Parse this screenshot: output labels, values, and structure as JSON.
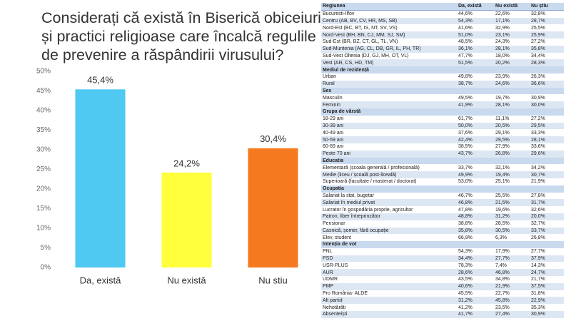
{
  "chart_data": {
    "type": "bar",
    "title": "Considerați că există în Biserică obiceiuri și practici religioase care încalcă regulile de prevenire a răspândirii virusului?",
    "categories": [
      "Da, există",
      "Nu există",
      "Nu stiu"
    ],
    "values": [
      45.4,
      24.2,
      30.4
    ],
    "value_labels": [
      "45,4%",
      "24,2%",
      "30,4%"
    ],
    "colors": [
      "#4fc8f2",
      "#ffff3c",
      "#f57a1f"
    ],
    "ylim": [
      0,
      50
    ],
    "yticks": [
      {
        "value": 0,
        "label": "0%"
      },
      {
        "value": 5,
        "label": "5%"
      },
      {
        "value": 10,
        "label": "10%"
      },
      {
        "value": 15,
        "label": "15%"
      },
      {
        "value": 20,
        "label": "20%"
      },
      {
        "value": 25,
        "label": "25%"
      },
      {
        "value": 30,
        "label": "30%"
      },
      {
        "value": 35,
        "label": "35%"
      },
      {
        "value": 40,
        "label": "40%"
      },
      {
        "value": 45,
        "label": "45%"
      },
      {
        "value": 50,
        "label": "50%"
      }
    ],
    "grid": false
  },
  "table": {
    "header": [
      "Regiunea",
      "Da, există",
      "Nu există",
      "Nu știu"
    ],
    "rows": [
      [
        "Bucuresti-Ilfov",
        "44,6%",
        "22,6%",
        "32,8%"
      ],
      [
        "Centru (AB, BV, CV, HR, MS, SB)",
        "54,3%",
        "17,1%",
        "28,7%"
      ],
      [
        "Nord-Est (BC, BT, IS, NT, SV, VS)",
        "41,6%",
        "32,9%",
        "25,5%"
      ],
      [
        "Nord-Vest (BH, BN, CJ, MM, SJ, SM)",
        "51,0%",
        "23,1%",
        "25,9%"
      ],
      [
        "Sud-Est (BR, BZ, CT, GL, TL, VN)",
        "48,5%",
        "24,3%",
        "27,2%"
      ],
      [
        "Sud-Muntenia (AG, CL, DB, GR, IL, PH, TR)",
        "36,1%",
        "28,1%",
        "35,8%"
      ],
      [
        "Sud-Vest Oltenia (DJ, GJ, MH, OT, VL)",
        "47,7%",
        "18,0%",
        "34,4%"
      ],
      [
        "Vest (AR, CS, HD, TM)",
        "51,5%",
        "20,2%",
        "28,3%"
      ],
      [
        "Mediul de rezidență"
      ],
      [
        "Urban",
        "49,8%",
        "23,9%",
        "26,3%"
      ],
      [
        "Rural",
        "38,7%",
        "24,6%",
        "36,6%"
      ],
      [
        "Sex"
      ],
      [
        "Masculin",
        "49,5%",
        "19,7%",
        "30,9%"
      ],
      [
        "Feminin",
        "41,9%",
        "28,1%",
        "30,0%"
      ],
      [
        "Grupa de vârstă"
      ],
      [
        "18-29 ani",
        "61,7%",
        "11,1%",
        "27,2%"
      ],
      [
        "30-39 ani",
        "50,0%",
        "20,5%",
        "29,5%"
      ],
      [
        "40-49 ani",
        "37,6%",
        "29,1%",
        "33,3%"
      ],
      [
        "50-59 ani",
        "42,4%",
        "29,5%",
        "28,1%"
      ],
      [
        "60-69 ani",
        "38,5%",
        "27,9%",
        "33,6%"
      ],
      [
        "Peste 70 ani",
        "43,7%",
        "26,8%",
        "29,6%"
      ],
      [
        "Educatia"
      ],
      [
        "Elementară (școala generală / profesională)",
        "33,7%",
        "32,1%",
        "34,2%"
      ],
      [
        "Medie (liceu / școală post-liceală)",
        "49,9%",
        "19,4%",
        "30,7%"
      ],
      [
        "Superioară (facultate / masterat / doctorat)",
        "53,0%",
        "25,1%",
        "21,9%"
      ],
      [
        "Ocupatia"
      ],
      [
        "Salariat la stat, bugetar",
        "46,7%",
        "25,5%",
        "27,8%"
      ],
      [
        "Salariat în mediul privat",
        "46,8%",
        "21,5%",
        "31,7%"
      ],
      [
        "Lucrator în gospodăria proprie, agricultor",
        "47,8%",
        "19,6%",
        "32,6%"
      ],
      [
        "Patron, liber întreprinzător",
        "48,8%",
        "31,2%",
        "20,0%"
      ],
      [
        "Pensionar",
        "38,8%",
        "28,5%",
        "32,7%"
      ],
      [
        "Casnică, șomer, fără ocupație",
        "35,8%",
        "30,5%",
        "33,7%"
      ],
      [
        "Elev, student",
        "66,9%",
        "6,3%",
        "26,8%"
      ],
      [
        "Intenția de vot"
      ],
      [
        "PNL",
        "54,3%",
        "17,9%",
        "27,7%"
      ],
      [
        "PSD",
        "34,4%",
        "27,7%",
        "37,9%"
      ],
      [
        "USR-PLUS",
        "78,3%",
        "7,4%",
        "14,3%"
      ],
      [
        "AUR",
        "28,6%",
        "46,8%",
        "24,7%"
      ],
      [
        "UDMR",
        "43,5%",
        "34,8%",
        "21,7%"
      ],
      [
        "PMP",
        "40,6%",
        "21,9%",
        "37,5%"
      ],
      [
        "Pro România- ALDE",
        "45,5%",
        "22,7%",
        "31,8%"
      ],
      [
        "Alt partid",
        "31,2%",
        "45,8%",
        "22,9%"
      ],
      [
        "Nehotărâți",
        "41,2%",
        "23,5%",
        "35,3%"
      ],
      [
        "Absenteiști",
        "41,7%",
        "27,4%",
        "30,9%"
      ]
    ]
  }
}
